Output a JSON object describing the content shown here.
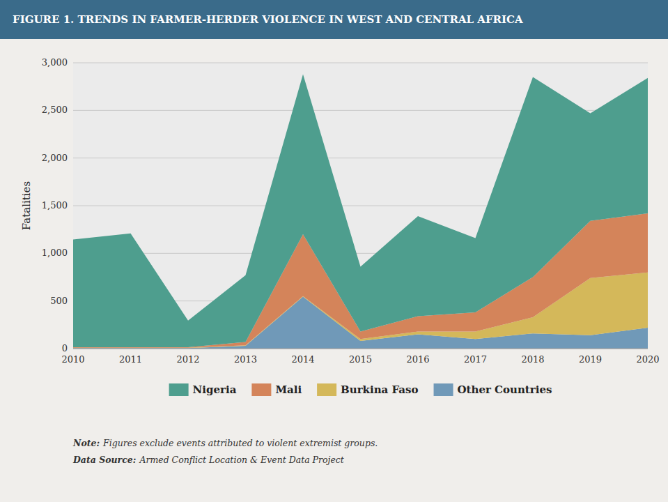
{
  "chart_data": {
    "type": "area",
    "stacked": true,
    "title": "FIGURE 1. TRENDS IN FARMER-HERDER VIOLENCE IN WEST AND CENTRAL AFRICA",
    "y_label": "Fatalities",
    "x": [
      2010,
      2011,
      2012,
      2013,
      2014,
      2015,
      2016,
      2017,
      2018,
      2019,
      2020
    ],
    "xlim": [
      2010,
      2020
    ],
    "xticks": [
      2010,
      2011,
      2012,
      2013,
      2014,
      2015,
      2016,
      2017,
      2018,
      2019,
      2020
    ],
    "ylim": [
      0,
      3000
    ],
    "yticks": [
      0,
      500,
      {
        "value": 1000,
        "label": "1,000"
      },
      {
        "value": 1500,
        "label": "1,500"
      },
      {
        "value": 2000,
        "label": "2,000"
      },
      {
        "value": 2500,
        "label": "2,500"
      },
      {
        "value": 3000,
        "label": "3,000"
      }
    ],
    "grid": true,
    "legend": "bottom",
    "series": [
      {
        "name": "Other Countries",
        "color": "#7099b8",
        "values": [
          5,
          5,
          5,
          30,
          545,
          80,
          150,
          100,
          160,
          140,
          220
        ]
      },
      {
        "name": "Burkina Faso",
        "color": "#d4b85a",
        "values": [
          5,
          5,
          5,
          5,
          5,
          20,
          30,
          80,
          170,
          600,
          580
        ]
      },
      {
        "name": "Mali",
        "color": "#d4845a",
        "values": [
          5,
          5,
          5,
          35,
          650,
          80,
          160,
          200,
          420,
          600,
          620
        ]
      },
      {
        "name": "Nigeria",
        "color": "#4e9e8e",
        "values": [
          1130,
          1195,
          280,
          700,
          1680,
          680,
          1050,
          780,
          2100,
          1130,
          1420
        ]
      }
    ],
    "annotations": [
      [
        "Note:",
        "Figures exclude events attributed to violent extremist groups."
      ],
      [
        "Data Source:",
        "Armed Conflict Location & Event Data Project"
      ]
    ]
  }
}
